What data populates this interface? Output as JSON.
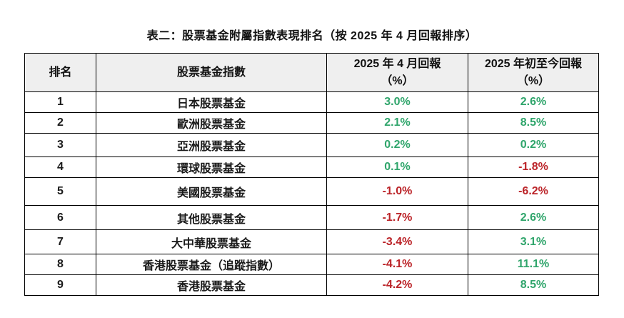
{
  "title": "表二：股票基金附屬指數表現排名（按 2025 年 4 月回報排序）",
  "colors": {
    "positive": "#2fa56b",
    "negative": "#bb2328",
    "header_bg": "#efefef",
    "border": "#000000"
  },
  "table": {
    "columns": [
      {
        "label": "排名",
        "sub": ""
      },
      {
        "label": "股票基金指數",
        "sub": ""
      },
      {
        "label": "2025 年 4 月回報",
        "sub": "（%）"
      },
      {
        "label": "2025 年初至今回報",
        "sub": "（%）"
      }
    ],
    "rows": [
      {
        "rank": "1",
        "name": "日本股票基金",
        "apr": "3.0%",
        "ytd": "2.6%"
      },
      {
        "rank": "2",
        "name": "歐洲股票基金",
        "apr": "2.1%",
        "ytd": "8.5%"
      },
      {
        "rank": "3",
        "name": "亞洲股票基金",
        "apr": "0.2%",
        "ytd": "0.2%"
      },
      {
        "rank": "4",
        "name": "環球股票基金",
        "apr": "0.1%",
        "ytd": "-1.8%"
      },
      {
        "rank": "5",
        "name": "美國股票基金",
        "apr": "-1.0%",
        "ytd": "-6.2%"
      },
      {
        "rank": "6",
        "name": "其他股票基金",
        "apr": "-1.7%",
        "ytd": "2.6%"
      },
      {
        "rank": "7",
        "name": "大中華股票基金",
        "apr": "-3.4%",
        "ytd": "3.1%"
      },
      {
        "rank": "8",
        "name": "香港股票基金（追蹤指數）",
        "apr": "-4.1%",
        "ytd": "11.1%"
      },
      {
        "rank": "9",
        "name": "香港股票基金",
        "apr": "-4.2%",
        "ytd": "8.5%"
      }
    ]
  }
}
